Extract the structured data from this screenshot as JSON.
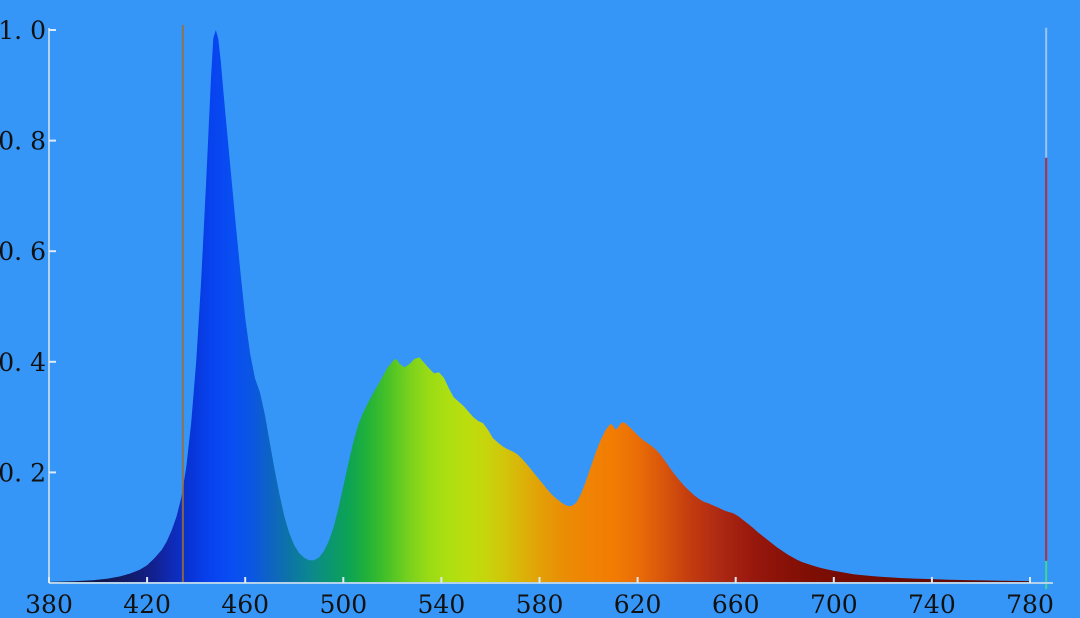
{
  "background_color": "#3596f8",
  "axes": {
    "axis_color": "#b5d2ec",
    "tick_color": "#ddebf9",
    "label_color": "#111111",
    "x_tick_labels": [
      "380",
      "420",
      "460",
      "500",
      "540",
      "580",
      "620",
      "660",
      "700",
      "740",
      "780"
    ],
    "x_tick_values": [
      380,
      420,
      460,
      500,
      540,
      580,
      620,
      660,
      700,
      740,
      780
    ],
    "y_tick_labels": [
      "0. 2",
      "0. 4",
      "0. 6",
      "0. 8",
      "1. 0"
    ],
    "y_tick_values": [
      0.2,
      0.4,
      0.6,
      0.8,
      1.0
    ]
  },
  "chart_data": {
    "type": "area",
    "title": "",
    "xlabel": "",
    "ylabel": "",
    "xlim": [
      380,
      780
    ],
    "ylim": [
      0,
      1.0
    ],
    "grid": false,
    "legend": "none",
    "description": "Normalized spectral power distribution of a white-LED style light source: narrow blue peak at ~448nm (1.00), broad phosphor hump peaking ~0.41 at 520-531nm, secondary orange peak ~0.29 at 606-614nm, valley ~0.14 at ~592nm, long deep-red tail to 780nm",
    "series": [
      {
        "name": "spectral-power-distribution",
        "fill": "wavelength-gradient",
        "x": [
          380,
          390,
          398,
          404,
          409,
          413,
          417,
          420,
          423,
          426,
          428,
          430,
          432,
          434,
          436,
          438,
          440,
          442,
          444,
          446,
          447,
          448,
          449,
          450,
          451,
          452,
          454,
          456,
          458,
          460,
          462,
          464,
          466,
          468,
          470,
          472,
          474,
          476,
          478,
          480,
          482,
          484,
          486,
          488,
          490,
          492,
          494,
          496,
          498,
          500,
          502,
          504,
          506,
          508,
          510,
          512,
          514,
          516,
          518,
          520,
          521,
          522,
          523,
          525,
          527,
          529,
          531,
          533,
          535,
          537,
          539,
          541,
          543,
          545,
          547,
          549,
          551,
          553,
          555,
          557,
          559,
          561,
          563,
          565,
          567,
          569,
          571,
          573,
          575,
          577,
          579,
          581,
          583,
          585,
          587,
          589,
          591,
          593,
          595,
          597,
          599,
          601,
          603,
          605,
          607,
          609,
          610,
          611,
          612,
          613,
          614,
          615,
          617,
          619,
          621,
          623,
          625,
          627,
          629,
          631,
          633,
          635,
          637,
          639,
          641,
          643,
          645,
          647,
          649,
          651,
          653,
          656,
          659,
          661,
          663,
          665,
          667,
          669,
          671,
          673,
          675,
          677,
          679,
          681,
          683,
          685,
          687,
          689,
          691,
          694,
          697,
          700,
          704,
          708,
          712,
          717,
          722,
          727,
          733,
          740,
          747,
          754,
          761,
          768,
          774,
          780
        ],
        "y": [
          0.002,
          0.003,
          0.005,
          0.008,
          0.012,
          0.017,
          0.024,
          0.032,
          0.045,
          0.06,
          0.075,
          0.095,
          0.12,
          0.155,
          0.21,
          0.29,
          0.4,
          0.545,
          0.72,
          0.91,
          0.985,
          1.0,
          0.985,
          0.945,
          0.895,
          0.845,
          0.75,
          0.655,
          0.565,
          0.48,
          0.415,
          0.37,
          0.345,
          0.305,
          0.255,
          0.205,
          0.16,
          0.12,
          0.09,
          0.068,
          0.054,
          0.046,
          0.041,
          0.041,
          0.046,
          0.057,
          0.075,
          0.1,
          0.135,
          0.175,
          0.215,
          0.253,
          0.285,
          0.307,
          0.325,
          0.342,
          0.357,
          0.373,
          0.389,
          0.4,
          0.405,
          0.403,
          0.396,
          0.39,
          0.396,
          0.405,
          0.408,
          0.398,
          0.388,
          0.379,
          0.381,
          0.371,
          0.352,
          0.336,
          0.328,
          0.32,
          0.31,
          0.3,
          0.293,
          0.289,
          0.277,
          0.262,
          0.254,
          0.247,
          0.242,
          0.238,
          0.233,
          0.224,
          0.214,
          0.203,
          0.192,
          0.181,
          0.17,
          0.16,
          0.152,
          0.145,
          0.14,
          0.139,
          0.145,
          0.162,
          0.185,
          0.211,
          0.237,
          0.259,
          0.277,
          0.288,
          0.284,
          0.277,
          0.281,
          0.288,
          0.291,
          0.289,
          0.281,
          0.272,
          0.263,
          0.256,
          0.25,
          0.243,
          0.234,
          0.222,
          0.209,
          0.197,
          0.186,
          0.176,
          0.167,
          0.159,
          0.152,
          0.147,
          0.144,
          0.14,
          0.136,
          0.13,
          0.126,
          0.121,
          0.114,
          0.107,
          0.1,
          0.092,
          0.085,
          0.078,
          0.071,
          0.064,
          0.058,
          0.052,
          0.047,
          0.042,
          0.038,
          0.035,
          0.032,
          0.028,
          0.025,
          0.022,
          0.019,
          0.016,
          0.014,
          0.012,
          0.0105,
          0.009,
          0.008,
          0.007,
          0.006,
          0.0053,
          0.0047,
          0.0042,
          0.0038,
          0.0035
        ]
      }
    ],
    "gradient_stops": [
      [
        380,
        "#141a30"
      ],
      [
        400,
        "#10164a"
      ],
      [
        412,
        "#121a66"
      ],
      [
        422,
        "#12208c"
      ],
      [
        430,
        "#0f2ab4"
      ],
      [
        438,
        "#0835d8"
      ],
      [
        446,
        "#0743ef"
      ],
      [
        455,
        "#094ef2"
      ],
      [
        462,
        "#0b55e4"
      ],
      [
        470,
        "#0e63c4"
      ],
      [
        478,
        "#0d74a6"
      ],
      [
        486,
        "#0c8690"
      ],
      [
        494,
        "#0b9573"
      ],
      [
        502,
        "#0ca355"
      ],
      [
        510,
        "#22b238"
      ],
      [
        518,
        "#48c127"
      ],
      [
        526,
        "#74d01d"
      ],
      [
        534,
        "#97da16"
      ],
      [
        542,
        "#abdf12"
      ],
      [
        550,
        "#bade0e"
      ],
      [
        558,
        "#c7d50c"
      ],
      [
        566,
        "#d2c50a"
      ],
      [
        574,
        "#dcb008"
      ],
      [
        582,
        "#e49c06"
      ],
      [
        590,
        "#ea8d05"
      ],
      [
        600,
        "#f08304"
      ],
      [
        610,
        "#f27c03"
      ],
      [
        620,
        "#ea6e06"
      ],
      [
        630,
        "#d9560b"
      ],
      [
        642,
        "#c23b10"
      ],
      [
        654,
        "#ac2812"
      ],
      [
        666,
        "#99190e"
      ],
      [
        678,
        "#8b1208"
      ],
      [
        690,
        "#7f0e05"
      ],
      [
        705,
        "#750c04"
      ],
      [
        725,
        "#6b0b03"
      ],
      [
        750,
        "#630a03"
      ],
      [
        780,
        "#5c0902"
      ]
    ],
    "markers": [
      {
        "name": "cursor-line-435nm",
        "x_nm": 434.6,
        "color": "rgba(155,110,58,0.85)",
        "from_value": 1.009,
        "to_value": 0.0
      },
      {
        "name": "cursor-line-787nm",
        "x_nm": 786.6,
        "segments": [
          {
            "from_value": 1.004,
            "to_value": 0.769,
            "color": "#9dc5ef"
          },
          {
            "from_value": 0.769,
            "to_value": 0.04,
            "color": "#ae2f3f"
          },
          {
            "from_value": 0.04,
            "to_value": -0.011,
            "color": "#3ed695"
          }
        ]
      }
    ]
  }
}
